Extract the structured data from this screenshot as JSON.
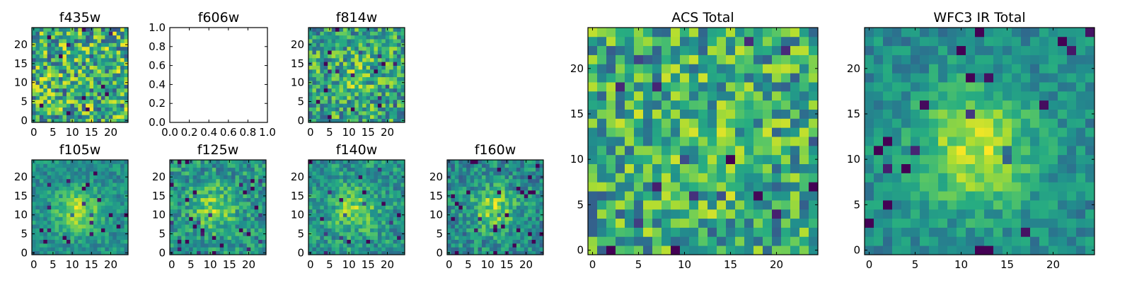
{
  "colormap": "viridis",
  "colors": {
    "background": "#ffffff",
    "axes": "#000000"
  },
  "chart_data": [
    {
      "type": "heatmap",
      "title": "f435w",
      "grid": [
        25,
        25
      ],
      "xticks": [
        "0",
        "5",
        "10",
        "15",
        "20"
      ],
      "yticks": [
        "0",
        "5",
        "10",
        "15",
        "20"
      ],
      "seed": 11,
      "sigma": 0.0,
      "amp": 0.0,
      "noise": 0.75,
      "base": 0.62
    },
    {
      "type": "empty",
      "title": "f606w",
      "xticks": [
        "0.0",
        "0.2",
        "0.4",
        "0.6",
        "0.8",
        "1.0"
      ],
      "yticks": [
        "0.0",
        "0.2",
        "0.4",
        "0.6",
        "0.8",
        "1.0"
      ],
      "xlim": [
        0,
        1
      ],
      "ylim": [
        0,
        1
      ]
    },
    {
      "type": "heatmap",
      "title": "f814w",
      "grid": [
        25,
        25
      ],
      "xticks": [
        "0",
        "5",
        "10",
        "15",
        "20"
      ],
      "yticks": [
        "0",
        "5",
        "10",
        "15",
        "20"
      ],
      "seed": 23,
      "sigma": 5,
      "amp": 0.12,
      "noise": 0.6,
      "base": 0.58
    },
    {
      "type": "heatmap",
      "title": "f105w",
      "grid": [
        25,
        25
      ],
      "xticks": [
        "0",
        "5",
        "10",
        "15",
        "20"
      ],
      "yticks": [
        "0",
        "5",
        "10",
        "15",
        "20"
      ],
      "seed": 31,
      "sigma": 4,
      "amp": 0.38,
      "noise": 0.3,
      "base": 0.5
    },
    {
      "type": "heatmap",
      "title": "f125w",
      "grid": [
        25,
        25
      ],
      "xticks": [
        "0",
        "5",
        "10",
        "15",
        "20"
      ],
      "yticks": [
        "0",
        "5",
        "10",
        "15",
        "20"
      ],
      "seed": 47,
      "sigma": 4,
      "amp": 0.3,
      "noise": 0.42,
      "base": 0.52
    },
    {
      "type": "heatmap",
      "title": "f140w",
      "grid": [
        25,
        25
      ],
      "xticks": [
        "0",
        "5",
        "10",
        "15",
        "20"
      ],
      "yticks": [
        "0",
        "5",
        "10",
        "15",
        "20"
      ],
      "seed": 53,
      "sigma": 4,
      "amp": 0.3,
      "noise": 0.38,
      "base": 0.52
    },
    {
      "type": "heatmap",
      "title": "f160w",
      "grid": [
        25,
        25
      ],
      "xticks": [
        "0",
        "5",
        "10",
        "15",
        "20"
      ],
      "yticks": [
        "0",
        "5",
        "10",
        "15",
        "20"
      ],
      "seed": 67,
      "sigma": 4,
      "amp": 0.35,
      "noise": 0.4,
      "base": 0.48
    },
    {
      "type": "heatmap",
      "title": "ACS Total",
      "grid": [
        25,
        25
      ],
      "xticks": [
        "0",
        "5",
        "10",
        "15",
        "20"
      ],
      "yticks": [
        "0",
        "5",
        "10",
        "15",
        "20"
      ],
      "seed": 79,
      "sigma": 5,
      "amp": 0.1,
      "noise": 0.62,
      "base": 0.6
    },
    {
      "type": "heatmap",
      "title": "WFC3 IR Total",
      "grid": [
        25,
        25
      ],
      "xticks": [
        "0",
        "5",
        "10",
        "15",
        "20"
      ],
      "yticks": [
        "0",
        "5",
        "10",
        "15",
        "20"
      ],
      "seed": 97,
      "sigma": 4.5,
      "amp": 0.42,
      "noise": 0.28,
      "base": 0.48
    }
  ]
}
